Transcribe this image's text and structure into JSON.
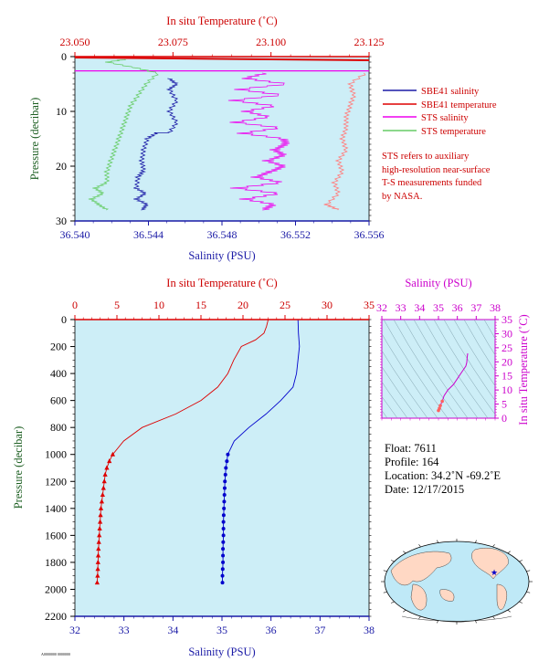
{
  "chart_data": [
    {
      "type": "line",
      "title": "",
      "top_axis": {
        "label": "In situ Temperature (˚C)",
        "ticks": [
          "23.050",
          "23.075",
          "23.100",
          "23.125"
        ],
        "range": [
          23.05,
          23.125
        ]
      },
      "bottom_axis": {
        "label": "Salinity (PSU)",
        "ticks": [
          "36.540",
          "36.544",
          "36.548",
          "36.552",
          "36.556"
        ],
        "range": [
          36.54,
          36.556
        ]
      },
      "y_axis": {
        "label": "Pressure (decibar)",
        "ticks": [
          "0",
          "10",
          "20",
          "30"
        ],
        "range": [
          0,
          30
        ],
        "inverted": true
      },
      "series": [
        {
          "name": "SBE41 salinity",
          "color": "#1a1aa6"
        },
        {
          "name": "SBE41 temperature",
          "color": "#dd0000"
        },
        {
          "name": "STS salinity",
          "color": "#ee00ee"
        },
        {
          "name": "STS temperature",
          "color": "#66cc66"
        }
      ],
      "sbe41_temperature": {
        "pressure": [
          0.0,
          0.5
        ],
        "temperature": [
          23.05,
          23.125
        ]
      },
      "sts_salinity": {
        "pressure": [
          3,
          4,
          5,
          6,
          7,
          8,
          9,
          10,
          11,
          12,
          13,
          14,
          15,
          16,
          17,
          18,
          19,
          20,
          21,
          22,
          23,
          24,
          25,
          26,
          27,
          28
        ],
        "salinity": [
          36.5503,
          36.5492,
          36.5515,
          36.5488,
          36.5512,
          36.5485,
          36.5508,
          36.5492,
          36.5505,
          36.5486,
          36.5511,
          36.549,
          36.5513,
          36.5514,
          36.5508,
          36.5513,
          36.5504,
          36.5513,
          36.5506,
          36.5498,
          36.5512,
          36.5487,
          36.5511,
          36.5492,
          36.5508,
          36.5502
        ]
      },
      "sts_temperature": {
        "pressure": [
          0.5,
          1,
          2,
          3,
          5,
          7,
          9,
          11,
          13,
          15,
          17,
          19,
          21,
          23,
          24,
          25,
          26,
          27,
          28
        ],
        "temperature": [
          23.063,
          23.058,
          23.065,
          23.071,
          23.068,
          23.066,
          23.064,
          23.063,
          23.062,
          23.061,
          23.06,
          23.059,
          23.058,
          23.058,
          23.055,
          23.057,
          23.054,
          23.056,
          23.058
        ]
      },
      "sbe41_salinity": {
        "pressure": [
          4,
          5,
          6,
          8,
          10,
          12,
          13.9,
          13.9,
          15,
          17,
          19,
          20.8,
          22,
          24,
          25,
          26,
          27,
          28
        ],
        "salinity": [
          36.5451,
          36.5455,
          36.5451,
          36.5455,
          36.5451,
          36.5455,
          36.5451,
          36.5444,
          36.5439,
          36.5437,
          36.5436,
          36.5437,
          36.5434,
          36.5433,
          36.5438,
          36.5433,
          36.5439,
          36.5436
        ]
      },
      "sts_temperature_right": {
        "pressure": [
          3,
          5,
          7,
          9,
          11,
          13,
          15,
          17,
          19,
          21,
          23,
          25,
          27,
          28
        ],
        "temperature": [
          23.124,
          23.12,
          23.121,
          23.12,
          23.119,
          23.119,
          23.118,
          23.119,
          23.117,
          23.118,
          23.116,
          23.117,
          23.114,
          23.117
        ]
      },
      "note": [
        "STS refers to auxiliary",
        "high-resolution near-surface",
        "T-S measurements funded",
        "by NASA."
      ]
    },
    {
      "type": "line",
      "title": "",
      "top_axis": {
        "label": "In situ Temperature (˚C)",
        "ticks": [
          "0",
          "5",
          "10",
          "15",
          "20",
          "25",
          "30",
          "35"
        ],
        "range": [
          0,
          35
        ]
      },
      "bottom_axis": {
        "label": "Salinity (PSU)",
        "ticks": [
          "32",
          "33",
          "34",
          "35",
          "36",
          "37",
          "38"
        ],
        "range": [
          32,
          38
        ]
      },
      "y_axis": {
        "label": "Pressure (decibar)",
        "ticks": [
          "0",
          "200",
          "400",
          "600",
          "800",
          "1000",
          "1200",
          "1400",
          "1600",
          "1800",
          "2000",
          "2200"
        ],
        "range": [
          0,
          2200
        ],
        "inverted": true
      },
      "temperature": {
        "pressure": [
          0,
          50,
          100,
          150,
          200,
          300,
          400,
          500,
          600,
          700,
          800,
          900,
          1000,
          1050,
          1100,
          1150,
          1200,
          1300,
          1400,
          1500,
          1600,
          1700,
          1800,
          1900,
          1950
        ],
        "values": [
          23.0,
          22.8,
          22.5,
          21.5,
          19.8,
          18.9,
          18.2,
          17.0,
          15.0,
          12.0,
          8.0,
          5.8,
          4.5,
          4.1,
          3.8,
          3.6,
          3.5,
          3.3,
          3.1,
          3.0,
          2.9,
          2.8,
          2.75,
          2.7,
          2.65
        ]
      },
      "salinity": {
        "pressure": [
          0,
          100,
          200,
          300,
          400,
          500,
          600,
          700,
          800,
          900,
          1000,
          1100,
          1200,
          1300,
          1400,
          1500,
          1600,
          1700,
          1800,
          1900,
          1950
        ],
        "values": [
          36.55,
          36.56,
          36.58,
          36.55,
          36.52,
          36.45,
          36.2,
          35.9,
          35.55,
          35.25,
          35.12,
          35.08,
          35.06,
          35.05,
          35.04,
          35.03,
          35.03,
          35.02,
          35.02,
          35.01,
          35.01
        ]
      },
      "marker_start_pressure": 1000
    },
    {
      "type": "scatter",
      "title": "",
      "top_axis": {
        "label": "Salinity (PSU)",
        "ticks": [
          "32",
          "33",
          "34",
          "35",
          "36",
          "37",
          "38"
        ],
        "range": [
          32,
          38
        ]
      },
      "right_axis": {
        "label": "In situ Temperature (˚C)",
        "ticks": [
          "0",
          "5",
          "10",
          "15",
          "20",
          "25",
          "30",
          "35"
        ],
        "range": [
          0,
          35
        ]
      },
      "ts_points": {
        "salinity": [
          35.0,
          35.05,
          35.1,
          35.2,
          35.3,
          35.5,
          35.8,
          36.1,
          36.3,
          36.45,
          36.5,
          36.52,
          36.55
        ],
        "temperature": [
          2.7,
          3.5,
          4.5,
          6.0,
          8.0,
          10.0,
          12.0,
          15.0,
          17.0,
          18.5,
          19.8,
          21.5,
          23.0
        ]
      }
    }
  ],
  "info": {
    "float": "Float:  7611",
    "profile": "Profile:  164",
    "location": "Location:  34.2˚N  -69.2˚E",
    "date": "Date:  12/17/2015"
  },
  "footer_code": "A0000000 0000000",
  "colors": {
    "plot_bg": "#cdeef7",
    "red": "#dd0000",
    "blue": "#0000cc",
    "magenta": "#ee00ee",
    "green": "#66cc66",
    "salmon": "#ff8080"
  }
}
